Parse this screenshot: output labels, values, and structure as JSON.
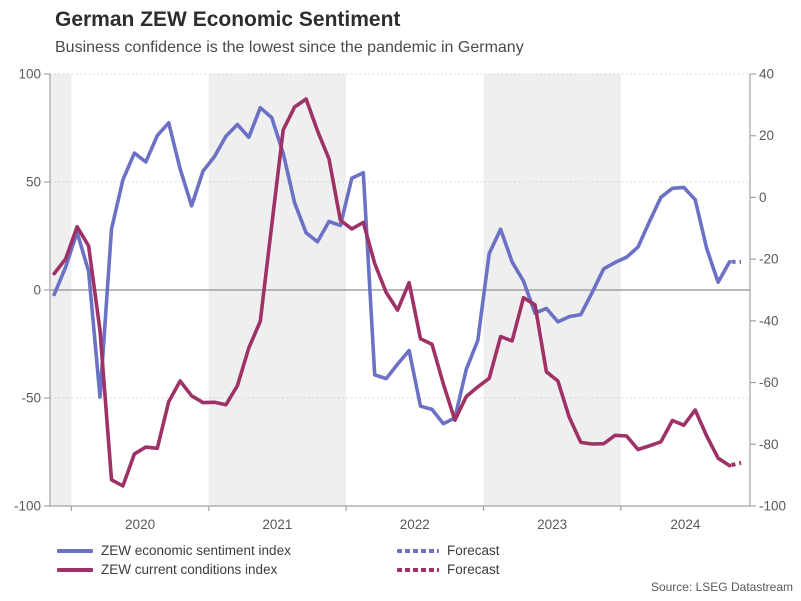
{
  "header": {
    "title": "German ZEW Economic Sentiment",
    "subtitle": "Business confidence is the lowest since the pandemic in Germany"
  },
  "source": "Source: LSEG Datastream",
  "colors": {
    "sentiment": "#6b71c4",
    "conditions": "#9e3165",
    "band": "#efefef",
    "grid": "#cfcfcf",
    "zero_line": "#8f8f8f",
    "axis": "#a3a3a3",
    "tick_label": "#595959"
  },
  "legend": [
    {
      "label": "ZEW economic sentiment index",
      "series": "sentiment",
      "style": "solid"
    },
    {
      "label": "ZEW current conditions index",
      "series": "conditions",
      "style": "solid"
    },
    {
      "label": "Forecast",
      "series": "sentiment",
      "style": "dotted"
    },
    {
      "label": "Forecast",
      "series": "conditions",
      "style": "dotted"
    }
  ],
  "chart_data": {
    "type": "line",
    "title": "German ZEW Economic Sentiment",
    "subtitle": "Business confidence is the lowest since the pandemic in Germany",
    "x_tick_labels": [
      "2020",
      "2021",
      "2022",
      "2023",
      "2024"
    ],
    "left_axis": {
      "ticks": [
        100,
        50,
        0,
        -50,
        -100
      ],
      "range": [
        -100,
        100
      ]
    },
    "right_axis": {
      "ticks": [
        40,
        20,
        0,
        -20,
        -40,
        -60,
        -80,
        -100
      ],
      "range": [
        -100,
        40
      ]
    },
    "shaded_years": [
      "2019",
      "2021",
      "2023"
    ],
    "grid": "dotted horizontal at left-axis 100, 50, -50; solid line at 0",
    "legend_position": "bottom",
    "months": [
      "2019-11",
      "2019-12",
      "2020-01",
      "2020-02",
      "2020-03",
      "2020-04",
      "2020-05",
      "2020-06",
      "2020-07",
      "2020-08",
      "2020-09",
      "2020-10",
      "2020-11",
      "2020-12",
      "2021-01",
      "2021-02",
      "2021-03",
      "2021-04",
      "2021-05",
      "2021-06",
      "2021-07",
      "2021-08",
      "2021-09",
      "2021-10",
      "2021-11",
      "2021-12",
      "2022-01",
      "2022-02",
      "2022-03",
      "2022-04",
      "2022-05",
      "2022-06",
      "2022-07",
      "2022-08",
      "2022-09",
      "2022-10",
      "2022-11",
      "2022-12",
      "2023-01",
      "2023-02",
      "2023-03",
      "2023-04",
      "2023-05",
      "2023-06",
      "2023-07",
      "2023-08",
      "2023-09",
      "2023-10",
      "2023-11",
      "2023-12",
      "2024-01",
      "2024-02",
      "2024-03",
      "2024-04",
      "2024-05",
      "2024-06",
      "2024-07",
      "2024-08",
      "2024-09",
      "2024-10"
    ],
    "forecast_month": "2024-11",
    "series": [
      {
        "name": "ZEW economic sentiment index",
        "axis": "left",
        "color": "#6b71c4",
        "values": [
          -2.1,
          10.7,
          26.7,
          8.7,
          -49.5,
          28.2,
          51.0,
          63.4,
          59.3,
          71.5,
          77.4,
          56.1,
          39.0,
          55.0,
          61.8,
          71.2,
          76.6,
          70.7,
          84.4,
          79.8,
          63.3,
          40.4,
          26.5,
          22.3,
          31.7,
          29.9,
          51.7,
          54.3,
          -39.3,
          -41.0,
          -34.3,
          -28.0,
          -53.8,
          -55.3,
          -61.9,
          -59.2,
          -36.7,
          -23.3,
          16.9,
          28.1,
          13.0,
          4.1,
          -10.7,
          -8.5,
          -14.7,
          -12.3,
          -11.4,
          -1.1,
          9.8,
          12.8,
          15.2,
          19.9,
          31.7,
          42.9,
          47.1,
          47.5,
          41.8,
          19.2,
          3.6,
          13.1
        ],
        "forecast": 13.0
      },
      {
        "name": "ZEW current conditions index",
        "axis": "right",
        "color": "#9e3165",
        "values": [
          -24.7,
          -19.9,
          -9.5,
          -15.7,
          -43.1,
          -91.5,
          -93.5,
          -83.1,
          -80.9,
          -81.3,
          -66.2,
          -59.5,
          -64.3,
          -66.5,
          -66.4,
          -67.2,
          -61.0,
          -48.8,
          -40.1,
          -9.1,
          21.9,
          29.3,
          31.9,
          21.6,
          12.5,
          -7.4,
          -10.2,
          -8.1,
          -21.4,
          -30.8,
          -36.5,
          -27.6,
          -45.8,
          -47.6,
          -60.5,
          -72.2,
          -64.5,
          -61.4,
          -58.6,
          -45.1,
          -46.5,
          -32.5,
          -34.8,
          -56.5,
          -59.5,
          -71.3,
          -79.4,
          -79.9,
          -79.8,
          -77.1,
          -77.3,
          -81.7,
          -80.5,
          -79.2,
          -72.3,
          -73.8,
          -68.9,
          -77.3,
          -84.5,
          -86.9
        ],
        "forecast": -86.0
      }
    ]
  }
}
